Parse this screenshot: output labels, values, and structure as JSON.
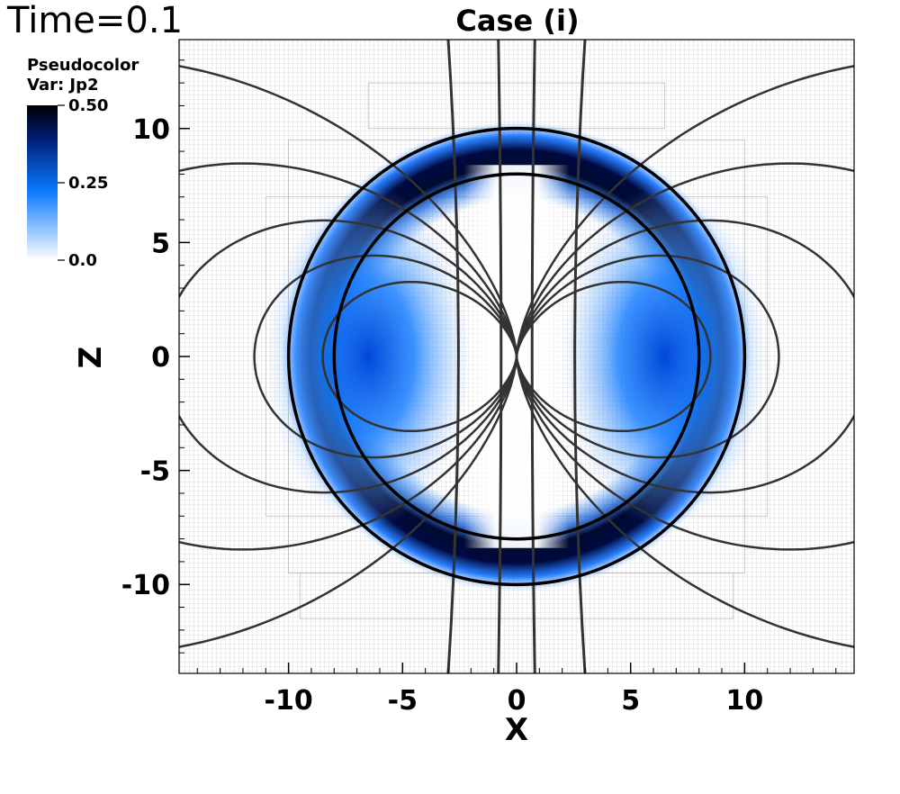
{
  "time_label": "Time=0.1",
  "legend": {
    "title_line1": "Pseudocolor",
    "title_line2": "Var: Jp2",
    "colormap": [
      "#ffffff",
      "#0070ff",
      "#000a40",
      "#000000"
    ],
    "ticks": [
      {
        "value": 0.5,
        "label": "0.50"
      },
      {
        "value": 0.25,
        "label": "0.25"
      },
      {
        "value": 0.0,
        "label": "0.0"
      }
    ]
  },
  "chart_data": {
    "type": "heatmap",
    "title": "Case (i)",
    "xlabel": "X",
    "ylabel": "Z",
    "xlim": [
      -14.8,
      14.8
    ],
    "ylim": [
      -13.9,
      13.9
    ],
    "xticks": [
      {
        "value": -10,
        "label": "-10"
      },
      {
        "value": -5,
        "label": "-5"
      },
      {
        "value": 0,
        "label": "0"
      },
      {
        "value": 5,
        "label": "5"
      },
      {
        "value": 10,
        "label": "10"
      }
    ],
    "yticks": [
      {
        "value": 10,
        "label": "10"
      },
      {
        "value": 5,
        "label": "5"
      },
      {
        "value": 0,
        "label": "0"
      },
      {
        "value": -5,
        "label": "-5"
      },
      {
        "value": -10,
        "label": "-10"
      }
    ],
    "variable": "Jp2",
    "value_range": [
      0.0,
      0.5
    ],
    "mesh_grid": true,
    "field_structure": {
      "outer_boundary_radius": 10,
      "inner_boundary_radius": 8,
      "shell_peak_value": 0.5,
      "lobe_centers": [
        [
          -6.5,
          0
        ],
        [
          6.5,
          0
        ]
      ],
      "lobe_peak_value": 0.3
    },
    "field_lines": {
      "color": "#333333",
      "dipole_loops_equatorial_x": [
        8.5,
        11.5,
        15.5,
        22,
        34
      ],
      "open_line_x_at_top": [
        -3,
        -0.8,
        0.8,
        3
      ]
    }
  }
}
